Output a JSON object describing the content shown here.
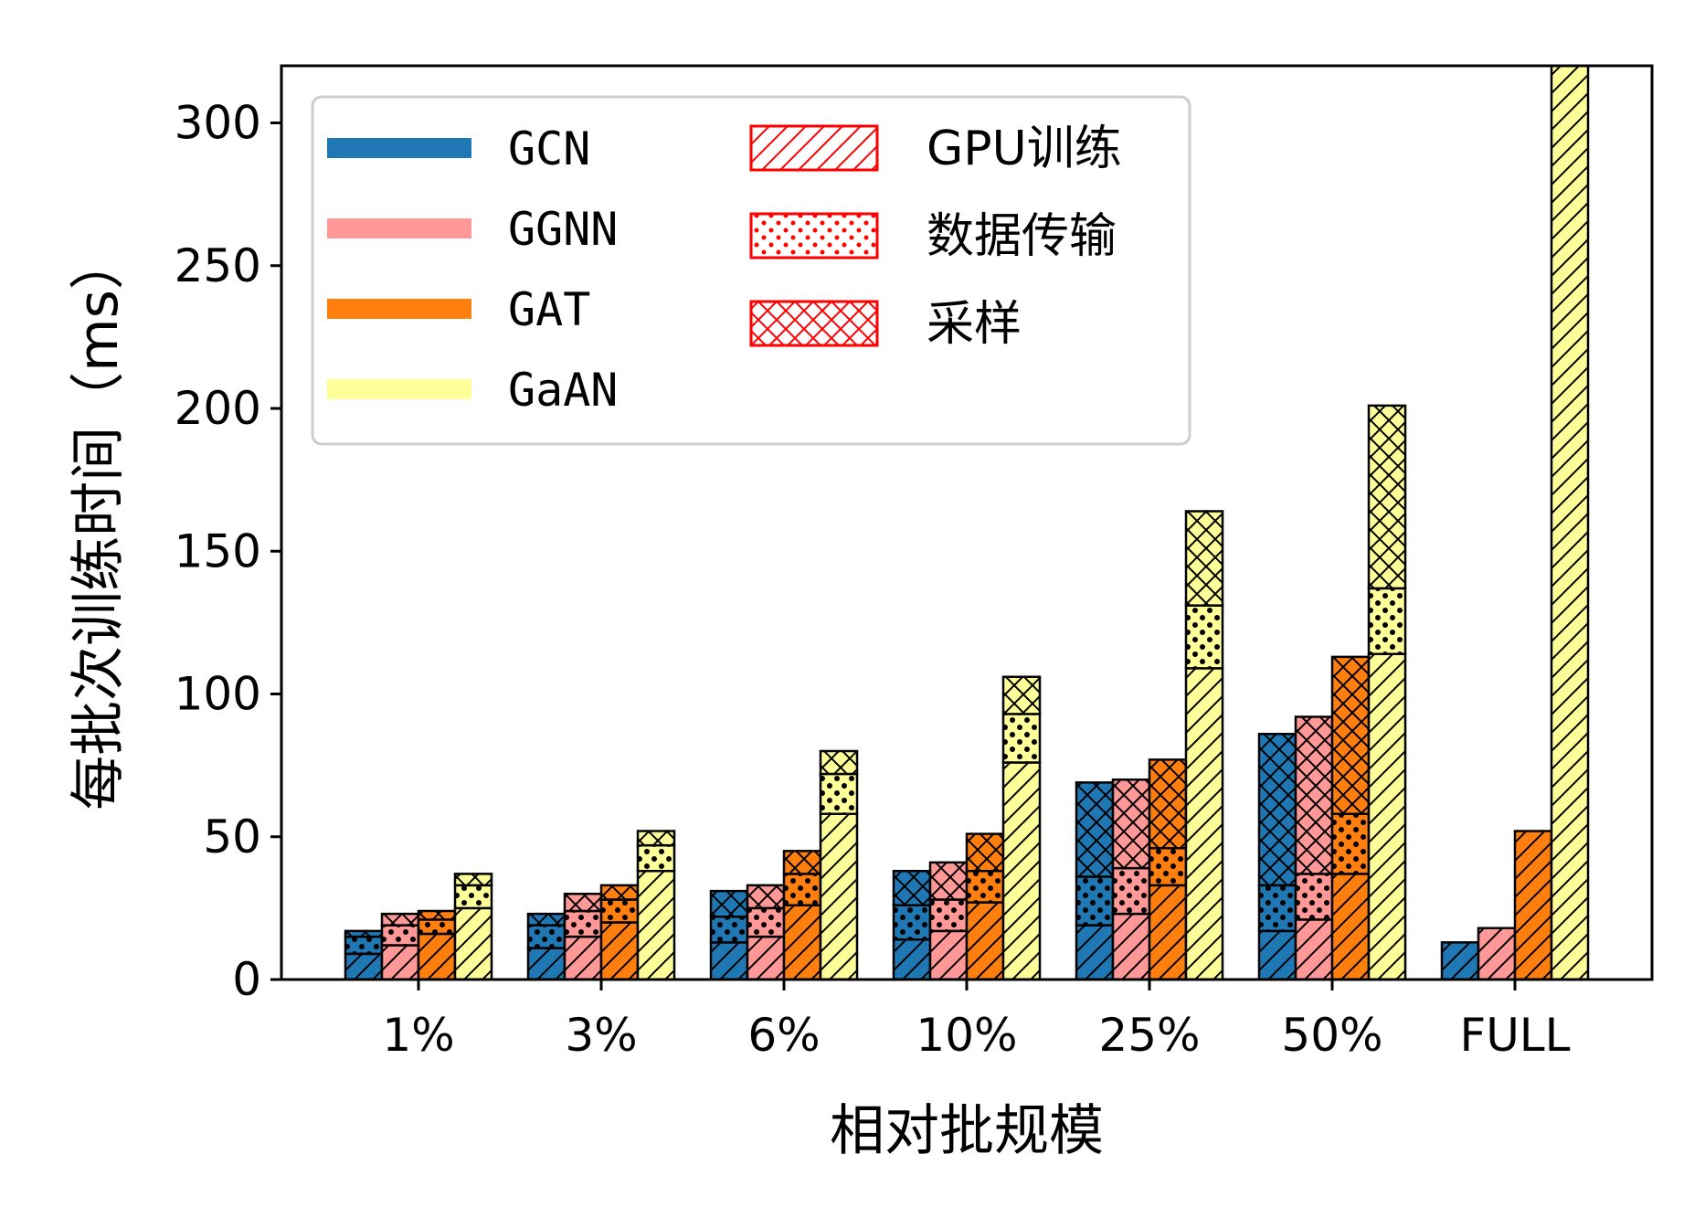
{
  "chart_data": {
    "type": "bar",
    "stacked": true,
    "xlabel": "相对批规模",
    "ylabel": "每批次训练时间（ms）",
    "ylim": [
      0,
      320
    ],
    "yticks": [
      0,
      50,
      100,
      150,
      200,
      250,
      300
    ],
    "categories": [
      "1%",
      "3%",
      "6%",
      "10%",
      "25%",
      "50%",
      "FULL"
    ],
    "models": [
      {
        "name": "GCN",
        "color": "#1f77b4"
      },
      {
        "name": "GGNN",
        "color": "#ff9896"
      },
      {
        "name": "GAT",
        "color": "#ff7f0e"
      },
      {
        "name": "GaAN",
        "color": "#ffff99"
      }
    ],
    "phases": [
      {
        "name": "GPU训练",
        "pattern": "diagonal-hatch"
      },
      {
        "name": "数据传输",
        "pattern": "dots"
      },
      {
        "name": "采样",
        "pattern": "cross-hatch"
      }
    ],
    "series": [
      {
        "name": "GCN",
        "gpu": [
          9,
          11,
          13,
          14,
          19,
          17,
          13
        ],
        "transfer": [
          6,
          8,
          9,
          12,
          17,
          16,
          0
        ],
        "sampling": [
          2,
          4,
          9,
          12,
          33,
          53,
          0
        ]
      },
      {
        "name": "GGNN",
        "gpu": [
          12,
          15,
          15,
          17,
          23,
          21,
          18
        ],
        "transfer": [
          7,
          9,
          10,
          11,
          16,
          16,
          0
        ],
        "sampling": [
          4,
          6,
          8,
          13,
          31,
          55,
          0
        ]
      },
      {
        "name": "GAT",
        "gpu": [
          16,
          20,
          26,
          27,
          33,
          37,
          52
        ],
        "transfer": [
          5,
          8,
          11,
          11,
          13,
          21,
          0
        ],
        "sampling": [
          3,
          5,
          8,
          13,
          31,
          55,
          0
        ]
      },
      {
        "name": "GaAN",
        "gpu": [
          25,
          38,
          58,
          76,
          109,
          114,
          320
        ],
        "transfer": [
          8,
          9,
          14,
          17,
          22,
          23,
          0
        ],
        "sampling": [
          4,
          5,
          8,
          13,
          33,
          64,
          0
        ]
      }
    ],
    "legend": {
      "position": "top-left",
      "ncol": 2
    }
  }
}
